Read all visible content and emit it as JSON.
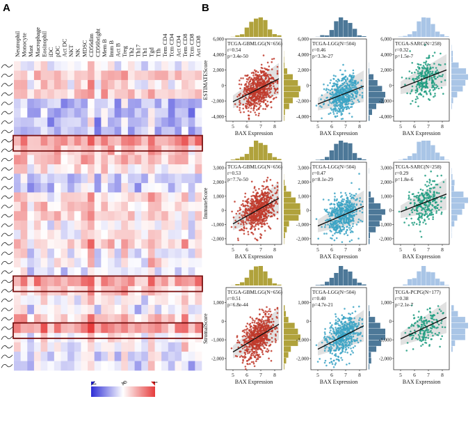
{
  "figure": {
    "panel_a_label": "A",
    "panel_b_label": "B",
    "x_axis_label": "BAX Expression",
    "x_ticks": [
      "5",
      "6",
      "7",
      "8"
    ]
  },
  "heatmap": {
    "columns": [
      "Neutrophil",
      "Monocyte",
      "Mast",
      "Macrophage",
      "Eosinophil",
      "iDC",
      "pDC",
      "Act DC",
      "NKT",
      "NK",
      "MDSC",
      "CD56dim",
      "CD56bright",
      "Mem B",
      "Imm B",
      "Act B",
      "Treg",
      "Th2",
      "Th17",
      "Th1",
      "Tgd",
      "Tfh",
      "Tem CD4",
      "Tcm CD4",
      "Act CD4",
      "Tem CD8",
      "Tcm CD8",
      "Act CD8"
    ],
    "row_count": 33,
    "highlight_rows": [
      8,
      23,
      28
    ],
    "legend": {
      "min_label": "-1",
      "mid_label": "0",
      "max_label": "1",
      "min_color": "#2d2dd6",
      "max_color": "#e63c3c"
    }
  },
  "chart_data": [
    {
      "type": "scatter",
      "row": 0,
      "col": 0,
      "title": "TCGA-GBMLGG(N=656)",
      "r": "r=0.54",
      "p": "p=3.4e-50",
      "ylabel": "ESTIMATEScore",
      "yticks": [
        "6,000",
        "4,000",
        "2,000",
        "0",
        "-2,000",
        "-4,000"
      ],
      "ylim": [
        -4600,
        6000
      ],
      "xlim": [
        4.5,
        8.5
      ],
      "color": "#c0392b",
      "hist_color": "#b0a23c",
      "n": 656,
      "slope": 900,
      "intercept": -6600
    },
    {
      "type": "scatter",
      "row": 0,
      "col": 1,
      "title": "TCGA-LGG(N=504)",
      "r": "r=0.46",
      "p": "p=3.3e-27",
      "ylabel": "",
      "yticks": [
        "6,000",
        "4,000",
        "2,000",
        "0",
        "-2,000",
        "-4,000"
      ],
      "ylim": [
        -4600,
        6000
      ],
      "xlim": [
        4.5,
        8.5
      ],
      "color": "#3ba3c4",
      "hist_color": "#4d7898",
      "n": 504,
      "slope": 700,
      "intercept": -5900
    },
    {
      "type": "scatter",
      "row": 0,
      "col": 2,
      "title": "TCGA-SARC(N=258)",
      "r": "r=0.32",
      "p": "p=1.5e-7",
      "ylabel": "",
      "yticks": [
        "6,000",
        "4,000",
        "2,000",
        "0",
        "-2,000",
        "-4,000"
      ],
      "ylim": [
        -4600,
        6000
      ],
      "xlim": [
        4.5,
        8.5
      ],
      "color": "#1e9c80",
      "hist_color": "#a9c5e6",
      "n": 258,
      "slope": 700,
      "intercept": -3800
    },
    {
      "type": "scatter",
      "row": 1,
      "col": 0,
      "title": "TCGA-GBMLGG(N=656)",
      "r": "r=0.53",
      "p": "p=7.7e-50",
      "ylabel": "ImmuneScore",
      "yticks": [
        "3,000",
        "2,000",
        "1,000",
        "0",
        "-1,000",
        "-2,000"
      ],
      "ylim": [
        -2400,
        3400
      ],
      "xlim": [
        4.5,
        8.5
      ],
      "color": "#c0392b",
      "hist_color": "#b0a23c",
      "n": 656,
      "slope": 550,
      "intercept": -3700
    },
    {
      "type": "scatter",
      "row": 1,
      "col": 1,
      "title": "TCGA-LGG(N=504)",
      "r": "r=0.47",
      "p": "p=8.1e-29",
      "ylabel": "",
      "yticks": [
        "3,000",
        "2,000",
        "1,000",
        "0",
        "-1,000",
        "-2,000"
      ],
      "ylim": [
        -2400,
        3400
      ],
      "xlim": [
        4.5,
        8.5
      ],
      "color": "#3ba3c4",
      "hist_color": "#4d7898",
      "n": 504,
      "slope": 420,
      "intercept": -3200
    },
    {
      "type": "scatter",
      "row": 1,
      "col": 2,
      "title": "TCGA-SARC(N=258)",
      "r": "r=0.29",
      "p": "p=1.8e-6",
      "ylabel": "",
      "yticks": [
        "3,000",
        "2,000",
        "1,000",
        "0",
        "-1,000",
        "-2,000"
      ],
      "ylim": [
        -2400,
        3400
      ],
      "xlim": [
        4.5,
        8.5
      ],
      "color": "#1e9c80",
      "hist_color": "#a9c5e6",
      "n": 258,
      "slope": 380,
      "intercept": -2000
    },
    {
      "type": "scatter",
      "row": 2,
      "col": 0,
      "title": "TCGA-GBMLGG(N=656)",
      "r": "r=0.51",
      "p": "p=6.8e-44",
      "ylabel": "StromalScore",
      "yticks": [
        "1,000",
        "0",
        "-1,000",
        "-2,000"
      ],
      "ylim": [
        -2600,
        1800
      ],
      "xlim": [
        4.5,
        8.5
      ],
      "color": "#c0392b",
      "hist_color": "#b0a23c",
      "n": 656,
      "slope": 450,
      "intercept": -3900
    },
    {
      "type": "scatter",
      "row": 2,
      "col": 1,
      "title": "TCGA-LGG(N=504)",
      "r": "r=0.40",
      "p": "p=4.7e-21",
      "ylabel": "",
      "yticks": [
        "1,000",
        "0",
        "-1,000",
        "-2,000"
      ],
      "ylim": [
        -2600,
        1800
      ],
      "xlim": [
        4.5,
        8.5
      ],
      "color": "#3ba3c4",
      "hist_color": "#4d7898",
      "n": 504,
      "slope": 380,
      "intercept": -3400
    },
    {
      "type": "scatter",
      "row": 2,
      "col": 2,
      "title": "TCGA-PCPG(N=177)",
      "r": "r=0.38",
      "p": "p=2.1e-7",
      "ylabel": "",
      "yticks": [
        "1,000",
        "0",
        "-1,000",
        "-2,000"
      ],
      "ylim": [
        -2600,
        1800
      ],
      "xlim": [
        4.5,
        8.5
      ],
      "color": "#1e9c80",
      "hist_color": "#a9c5e6",
      "n": 177,
      "slope": 350,
      "intercept": -2700
    }
  ]
}
